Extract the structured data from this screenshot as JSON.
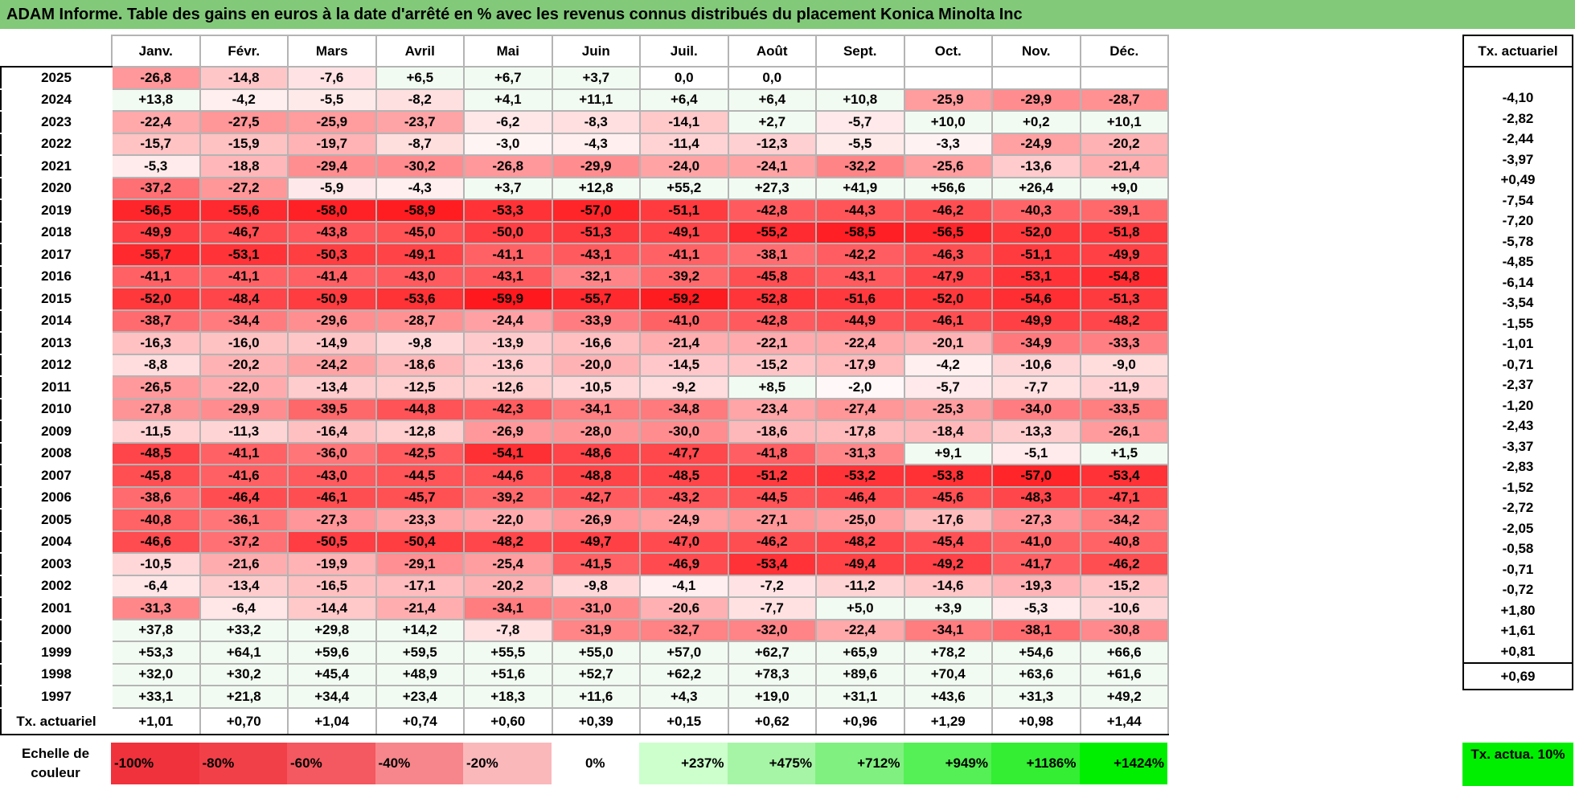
{
  "title": "ADAM Informe. Table des gains en euros à la date d'arrêté en % avec les revenus connus distribués du placement Konica Minolta Inc",
  "chart_data": {
    "type": "heatmap",
    "months": [
      "Janv.",
      "Févr.",
      "Mars",
      "Avril",
      "Mai",
      "Juin",
      "Juil.",
      "Août",
      "Sept.",
      "Oct.",
      "Nov.",
      "Déc."
    ],
    "tx_header": "Tx. actuariel",
    "rows": [
      {
        "year": "2025",
        "values": [
          "-26,8",
          "-14,8",
          "-7,6",
          "+6,5",
          "+6,7",
          "+3,7",
          "0,0",
          "0,0",
          "",
          "",
          "",
          ""
        ],
        "tx": ""
      },
      {
        "year": "2024",
        "values": [
          "+13,8",
          "-4,2",
          "-5,5",
          "-8,2",
          "+4,1",
          "+11,1",
          "+6,4",
          "+6,4",
          "+10,8",
          "-25,9",
          "-29,9",
          "-28,7"
        ],
        "tx": "-4,10"
      },
      {
        "year": "2023",
        "values": [
          "-22,4",
          "-27,5",
          "-25,9",
          "-23,7",
          "-6,2",
          "-8,3",
          "-14,1",
          "+2,7",
          "-5,7",
          "+10,0",
          "+0,2",
          "+10,1"
        ],
        "tx": "-2,82"
      },
      {
        "year": "2022",
        "values": [
          "-15,7",
          "-15,9",
          "-19,7",
          "-8,7",
          "-3,0",
          "-4,3",
          "-11,4",
          "-12,3",
          "-5,5",
          "-3,3",
          "-24,9",
          "-20,2"
        ],
        "tx": "-2,44"
      },
      {
        "year": "2021",
        "values": [
          "-5,3",
          "-18,8",
          "-29,4",
          "-30,2",
          "-26,8",
          "-29,9",
          "-24,0",
          "-24,1",
          "-32,2",
          "-25,6",
          "-13,6",
          "-21,4"
        ],
        "tx": "-3,97"
      },
      {
        "year": "2020",
        "values": [
          "-37,2",
          "-27,2",
          "-5,9",
          "-4,3",
          "+3,7",
          "+12,8",
          "+55,2",
          "+27,3",
          "+41,9",
          "+56,6",
          "+26,4",
          "+9,0"
        ],
        "tx": "+0,49"
      },
      {
        "year": "2019",
        "values": [
          "-56,5",
          "-55,6",
          "-58,0",
          "-58,9",
          "-53,3",
          "-57,0",
          "-51,1",
          "-42,8",
          "-44,3",
          "-46,2",
          "-40,3",
          "-39,1"
        ],
        "tx": "-7,54"
      },
      {
        "year": "2018",
        "values": [
          "-49,9",
          "-46,7",
          "-43,8",
          "-45,0",
          "-50,0",
          "-51,3",
          "-49,1",
          "-55,2",
          "-58,5",
          "-56,5",
          "-52,0",
          "-51,8"
        ],
        "tx": "-7,20"
      },
      {
        "year": "2017",
        "values": [
          "-55,7",
          "-53,1",
          "-50,3",
          "-49,1",
          "-41,1",
          "-43,1",
          "-41,1",
          "-38,1",
          "-42,2",
          "-46,3",
          "-51,1",
          "-49,9"
        ],
        "tx": "-5,78"
      },
      {
        "year": "2016",
        "values": [
          "-41,1",
          "-41,1",
          "-41,4",
          "-43,0",
          "-43,1",
          "-32,1",
          "-39,2",
          "-45,8",
          "-43,1",
          "-47,9",
          "-53,1",
          "-54,8"
        ],
        "tx": "-4,85"
      },
      {
        "year": "2015",
        "values": [
          "-52,0",
          "-48,4",
          "-50,9",
          "-53,6",
          "-59,9",
          "-55,7",
          "-59,2",
          "-52,8",
          "-51,6",
          "-52,0",
          "-54,6",
          "-51,3"
        ],
        "tx": "-6,14"
      },
      {
        "year": "2014",
        "values": [
          "-38,7",
          "-34,4",
          "-29,6",
          "-28,7",
          "-24,4",
          "-33,9",
          "-41,0",
          "-42,8",
          "-44,9",
          "-46,1",
          "-49,9",
          "-48,2"
        ],
        "tx": "-3,54"
      },
      {
        "year": "2013",
        "values": [
          "-16,3",
          "-16,0",
          "-14,9",
          "-9,8",
          "-13,9",
          "-16,6",
          "-21,4",
          "-22,1",
          "-22,4",
          "-20,1",
          "-34,9",
          "-33,3"
        ],
        "tx": "-1,55"
      },
      {
        "year": "2012",
        "values": [
          "-8,8",
          "-20,2",
          "-24,2",
          "-18,6",
          "-13,6",
          "-20,0",
          "-14,5",
          "-15,2",
          "-17,9",
          "-4,2",
          "-10,6",
          "-9,0"
        ],
        "tx": "-1,01"
      },
      {
        "year": "2011",
        "values": [
          "-26,5",
          "-22,0",
          "-13,4",
          "-12,5",
          "-12,6",
          "-10,5",
          "-9,2",
          "+8,5",
          "-2,0",
          "-5,7",
          "-7,7",
          "-11,9"
        ],
        "tx": "-0,71"
      },
      {
        "year": "2010",
        "values": [
          "-27,8",
          "-29,9",
          "-39,5",
          "-44,8",
          "-42,3",
          "-34,1",
          "-34,8",
          "-23,4",
          "-27,4",
          "-25,3",
          "-34,0",
          "-33,5"
        ],
        "tx": "-2,37"
      },
      {
        "year": "2009",
        "values": [
          "-11,5",
          "-11,3",
          "-16,4",
          "-12,8",
          "-26,9",
          "-28,0",
          "-30,0",
          "-18,6",
          "-17,8",
          "-18,4",
          "-13,3",
          "-26,1"
        ],
        "tx": "-1,20"
      },
      {
        "year": "2008",
        "values": [
          "-48,5",
          "-41,1",
          "-36,0",
          "-42,5",
          "-54,1",
          "-48,6",
          "-47,7",
          "-41,8",
          "-31,3",
          "+9,1",
          "-5,1",
          "+1,5"
        ],
        "tx": "-2,43"
      },
      {
        "year": "2007",
        "values": [
          "-45,8",
          "-41,6",
          "-43,0",
          "-44,5",
          "-44,6",
          "-48,8",
          "-48,5",
          "-51,2",
          "-53,2",
          "-53,8",
          "-57,0",
          "-53,4"
        ],
        "tx": "-3,37"
      },
      {
        "year": "2006",
        "values": [
          "-38,6",
          "-46,4",
          "-46,1",
          "-45,7",
          "-39,2",
          "-42,7",
          "-43,2",
          "-44,5",
          "-46,4",
          "-45,6",
          "-48,3",
          "-47,1"
        ],
        "tx": "-2,83"
      },
      {
        "year": "2005",
        "values": [
          "-40,8",
          "-36,1",
          "-27,3",
          "-23,3",
          "-22,0",
          "-26,9",
          "-24,9",
          "-27,1",
          "-25,0",
          "-17,6",
          "-27,3",
          "-34,2"
        ],
        "tx": "-1,52"
      },
      {
        "year": "2004",
        "values": [
          "-46,6",
          "-37,2",
          "-50,5",
          "-50,4",
          "-48,2",
          "-49,7",
          "-47,0",
          "-46,2",
          "-48,2",
          "-45,4",
          "-41,0",
          "-40,8"
        ],
        "tx": "-2,72"
      },
      {
        "year": "2003",
        "values": [
          "-10,5",
          "-21,6",
          "-19,9",
          "-29,1",
          "-25,4",
          "-41,5",
          "-46,9",
          "-53,4",
          "-49,4",
          "-49,2",
          "-41,7",
          "-46,2"
        ],
        "tx": "-2,05"
      },
      {
        "year": "2002",
        "values": [
          "-6,4",
          "-13,4",
          "-16,5",
          "-17,1",
          "-20,2",
          "-9,8",
          "-4,1",
          "-7,2",
          "-11,2",
          "-14,6",
          "-19,3",
          "-15,2"
        ],
        "tx": "-0,58"
      },
      {
        "year": "2001",
        "values": [
          "-31,3",
          "-6,4",
          "-14,4",
          "-21,4",
          "-34,1",
          "-31,0",
          "-20,6",
          "-7,7",
          "+5,0",
          "+3,9",
          "-5,3",
          "-10,6"
        ],
        "tx": "-0,71"
      },
      {
        "year": "2000",
        "values": [
          "+37,8",
          "+33,2",
          "+29,8",
          "+14,2",
          "-7,8",
          "-31,9",
          "-32,7",
          "-32,0",
          "-22,4",
          "-34,1",
          "-38,1",
          "-30,8"
        ],
        "tx": "-0,72"
      },
      {
        "year": "1999",
        "values": [
          "+53,3",
          "+64,1",
          "+59,6",
          "+59,5",
          "+55,5",
          "+55,0",
          "+57,0",
          "+62,7",
          "+65,9",
          "+78,2",
          "+54,6",
          "+66,6"
        ],
        "tx": "+1,80"
      },
      {
        "year": "1998",
        "values": [
          "+32,0",
          "+30,2",
          "+45,4",
          "+48,9",
          "+51,6",
          "+52,7",
          "+62,2",
          "+78,3",
          "+89,6",
          "+70,4",
          "+63,6",
          "+61,6"
        ],
        "tx": "+1,61"
      },
      {
        "year": "1997",
        "values": [
          "+33,1",
          "+21,8",
          "+34,4",
          "+23,4",
          "+18,3",
          "+11,6",
          "+4,3",
          "+19,0",
          "+31,1",
          "+43,6",
          "+31,3",
          "+49,2"
        ],
        "tx": "+0,81"
      }
    ],
    "summary": {
      "label": "Tx. actuariel",
      "values": [
        "+1,01",
        "+0,70",
        "+1,04",
        "+0,74",
        "+0,60",
        "+0,39",
        "+0,15",
        "+0,62",
        "+0,96",
        "+1,29",
        "+0,98",
        "+1,44"
      ],
      "tx": "+0,69"
    },
    "legend": {
      "label": "Echelle de couleur",
      "items": [
        {
          "text": "-100%",
          "value": -100,
          "color": "#f0323c"
        },
        {
          "text": "-80%",
          "value": -80,
          "color": "#f24049"
        },
        {
          "text": "-60%",
          "value": -60,
          "color": "#f45860"
        },
        {
          "text": "-40%",
          "value": -40,
          "color": "#f6868b"
        },
        {
          "text": "-20%",
          "value": -20,
          "color": "#fab8bb"
        },
        {
          "text": "0%",
          "value": 0,
          "color": "#ffffff"
        },
        {
          "text": "+237%",
          "value": 237,
          "color": "#ccffcc"
        },
        {
          "text": "+475%",
          "value": 475,
          "color": "#a6f5a6"
        },
        {
          "text": "+712%",
          "value": 712,
          "color": "#80f080"
        },
        {
          "text": "+949%",
          "value": 949,
          "color": "#55f055"
        },
        {
          "text": "+1186%",
          "value": 1186,
          "color": "#33ee33"
        },
        {
          "text": "+1424%",
          "value": 1424,
          "color": "#00ee00"
        }
      ],
      "tx_label": "Tx. actua. 10%",
      "tx_color": "#00ee00"
    },
    "colors": {
      "negative_max": "#ff0000",
      "zero": "#ffffff",
      "positive_tint": "#f2fbf2",
      "title_bar": "#82c97a"
    }
  }
}
